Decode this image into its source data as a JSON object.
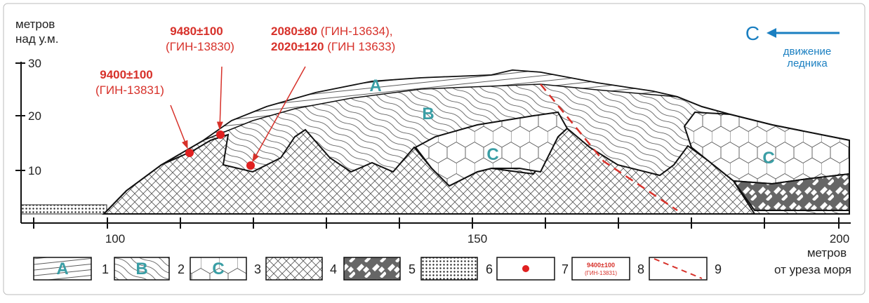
{
  "y_axis": {
    "title": [
      "метров",
      "над у.м."
    ],
    "ticks": [
      "30",
      "20",
      "10"
    ]
  },
  "x_axis": {
    "ticks": [
      "100",
      "150",
      "200"
    ],
    "title": [
      "метров",
      "от уреза моря"
    ]
  },
  "dates": [
    {
      "value": "9400±100",
      "lab": "(ГИН-13831)"
    },
    {
      "value": "9480±100",
      "lab": "(ГИН-13830)"
    },
    {
      "lines": [
        {
          "value": "2080±80",
          "lab": " (ГИН-13634),"
        },
        {
          "value": "2020±120",
          "lab": " (ГИН  13633)"
        }
      ]
    }
  ],
  "direction": {
    "letter": "С",
    "label": [
      "движение",
      "ледника"
    ]
  },
  "units": [
    "A",
    "B",
    "C",
    "C"
  ],
  "legend": [
    {
      "number": "1",
      "label": "A"
    },
    {
      "number": "2",
      "label": "B"
    },
    {
      "number": "3",
      "label": "C"
    },
    {
      "number": "4"
    },
    {
      "number": "5"
    },
    {
      "number": "6"
    },
    {
      "number": "7"
    },
    {
      "number": "8",
      "sample": [
        "9400±100",
        "(ГИН-13831)"
      ]
    },
    {
      "number": "9"
    }
  ]
}
